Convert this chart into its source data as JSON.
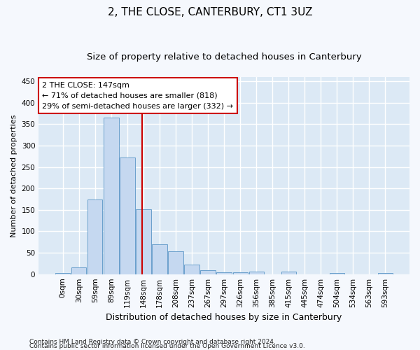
{
  "title": "2, THE CLOSE, CANTERBURY, CT1 3UZ",
  "subtitle": "Size of property relative to detached houses in Canterbury",
  "xlabel": "Distribution of detached houses by size in Canterbury",
  "ylabel": "Number of detached properties",
  "footnote1": "Contains HM Land Registry data © Crown copyright and database right 2024.",
  "footnote2": "Contains public sector information licensed under the Open Government Licence v3.0.",
  "bar_labels": [
    "0sqm",
    "30sqm",
    "59sqm",
    "89sqm",
    "119sqm",
    "148sqm",
    "178sqm",
    "208sqm",
    "237sqm",
    "267sqm",
    "297sqm",
    "326sqm",
    "356sqm",
    "385sqm",
    "415sqm",
    "445sqm",
    "474sqm",
    "504sqm",
    "534sqm",
    "563sqm",
    "593sqm"
  ],
  "bar_values": [
    3,
    16,
    175,
    365,
    272,
    151,
    70,
    54,
    22,
    9,
    5,
    5,
    6,
    0,
    6,
    0,
    0,
    2,
    0,
    0,
    2
  ],
  "bar_color": "#c5d8f0",
  "bar_edge_color": "#6aa0cc",
  "vline_color": "#cc0000",
  "annotation_line1": "2 THE CLOSE: 147sqm",
  "annotation_line2": "← 71% of detached houses are smaller (818)",
  "annotation_line3": "29% of semi-detached houses are larger (332) →",
  "annotation_box_color": "#ffffff",
  "annotation_box_edge_color": "#cc0000",
  "ylim": [
    0,
    460
  ],
  "fig_background": "#f5f8fd",
  "plot_background": "#dce9f5",
  "grid_color": "#ffffff",
  "title_fontsize": 11,
  "subtitle_fontsize": 9.5,
  "ylabel_fontsize": 8,
  "xlabel_fontsize": 9,
  "tick_fontsize": 7.5,
  "annotation_fontsize": 8,
  "footnote_fontsize": 6.5
}
